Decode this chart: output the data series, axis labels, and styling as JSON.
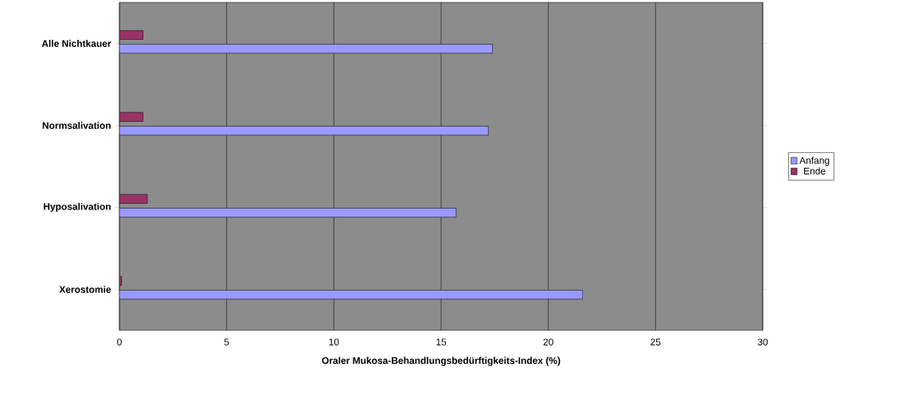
{
  "chart_data": {
    "type": "bar",
    "orientation": "horizontal",
    "xlabel": "Oraler Mukosa-Behandlungsbedürftigkeits-Index (%)",
    "categories": [
      "Alle Nichtkauer",
      "Normsalivation",
      "Hyposalivation",
      "Xerostomie"
    ],
    "series": [
      {
        "name": "Anfang",
        "color": "#9999ff",
        "values": [
          17.4,
          17.2,
          15.7,
          21.6
        ]
      },
      {
        "name": "Ende",
        "color": "#993366",
        "values": [
          1.1,
          1.1,
          1.3,
          0.1
        ]
      }
    ],
    "xlim": [
      0,
      30
    ],
    "xticks": [
      0,
      5,
      10,
      15,
      20,
      25,
      30
    ],
    "grid": "x",
    "legend": "right"
  }
}
